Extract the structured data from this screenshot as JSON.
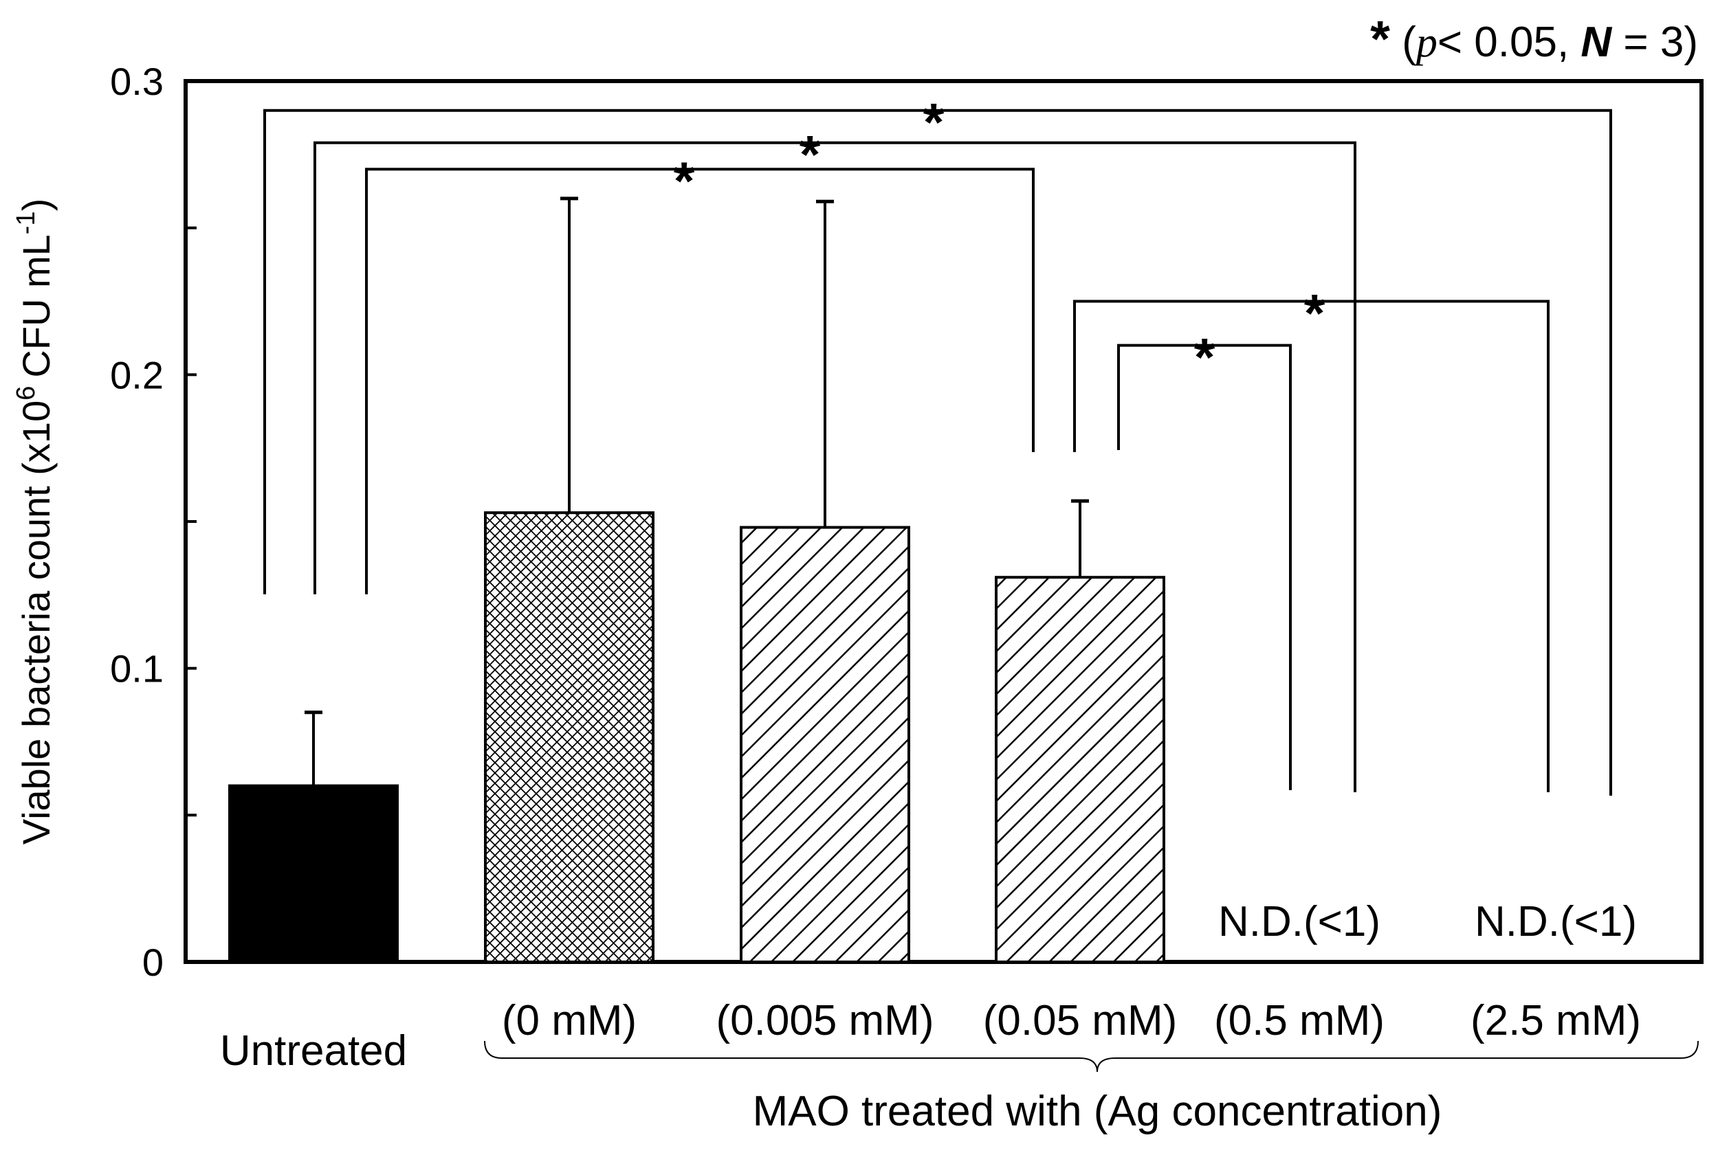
{
  "chart_data": {
    "type": "bar",
    "ylabel": "Viable bacteria count (x10",
    "ylabel_exp": "6",
    "ylabel_units": "CFU mL",
    "ylabel_units_exp": "-1",
    "ylabel_close": ")",
    "ylim": [
      0,
      0.3
    ],
    "yticks": [
      0,
      0.05,
      0.1,
      0.15,
      0.2,
      0.25,
      0.3
    ],
    "ytick_labels": [
      "0",
      "",
      "0.1",
      "",
      "0.2",
      "",
      "0.3"
    ],
    "categories": [
      "Untreated",
      "(0 mM)",
      "(0.005 mM)",
      "(0.05 mM)",
      "(0.5 mM)",
      "(2.5 mM)"
    ],
    "values": [
      0.06,
      0.153,
      0.148,
      0.131,
      null,
      null
    ],
    "errors": [
      0.025,
      0.107,
      0.111,
      0.026,
      null,
      null
    ],
    "patterns": [
      "solid",
      "crosshatch",
      "diagonal",
      "diagonal",
      "none",
      "none"
    ],
    "not_detected_labels": [
      "",
      "",
      "",
      "",
      "N.D.(<1)",
      "N.D.(<1)"
    ],
    "group_label": "MAO treated with (Ag concentration)",
    "significance_note": {
      "star": "*",
      "open": " (",
      "p": "p",
      "p_rest": "< 0.05, ",
      "n": "N",
      "n_rest": " = 3)"
    },
    "significance_brackets": [
      {
        "from": 0,
        "to": 5,
        "label": "*",
        "level": 0.29
      },
      {
        "from": 0,
        "to": 4,
        "label": "*",
        "level": 0.279
      },
      {
        "from": 0,
        "to": 3,
        "label": "*",
        "level": 0.27
      },
      {
        "from": 3,
        "to": 5,
        "label": "*",
        "level": 0.225
      },
      {
        "from": 3,
        "to": 4,
        "label": "*",
        "level": 0.21
      }
    ]
  }
}
